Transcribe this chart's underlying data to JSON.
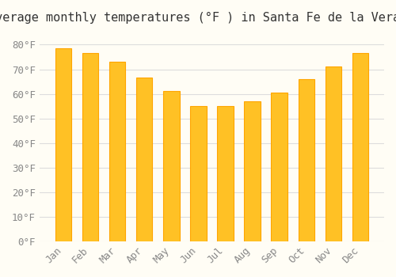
{
  "title": "Average monthly temperatures (°F ) in Santa Fe de la Vera Cruz",
  "months": [
    "Jan",
    "Feb",
    "Mar",
    "Apr",
    "May",
    "Jun",
    "Jul",
    "Aug",
    "Sep",
    "Oct",
    "Nov",
    "Dec"
  ],
  "values": [
    78.5,
    76.5,
    73.0,
    66.5,
    61.0,
    55.0,
    55.0,
    57.0,
    60.5,
    66.0,
    71.0,
    76.5
  ],
  "bar_color_face": "#FFC125",
  "bar_color_edge": "#FFA500",
  "background_color": "#FFFDF5",
  "grid_color": "#DDDDDD",
  "yticks": [
    0,
    10,
    20,
    30,
    40,
    50,
    60,
    70,
    80
  ],
  "ylim": [
    0,
    85
  ],
  "ylabel_suffix": "°F",
  "title_fontsize": 11,
  "tick_fontsize": 9
}
